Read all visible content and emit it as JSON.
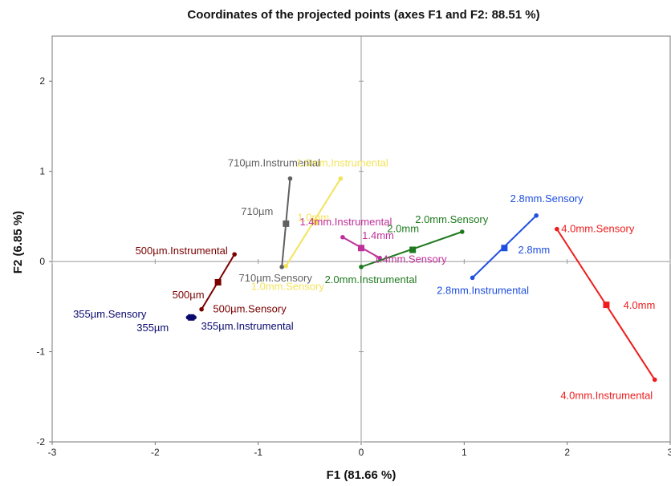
{
  "chart_data": {
    "type": "scatter",
    "title": "Coordinates of the projected points (axes F1 and F2: 88.51 %)",
    "xlabel": "F1 (81.66 %)",
    "ylabel": "F2 (6.85 %)",
    "xlim": [
      -3,
      3
    ],
    "ylim": [
      -2,
      2.5
    ],
    "xticks": [
      -3,
      -2,
      -1,
      0,
      1,
      2,
      3
    ],
    "yticks": [
      -2,
      -1,
      0,
      1,
      2
    ],
    "grid": false,
    "groups": [
      {
        "color": "#0a0a6e",
        "points": [
          {
            "name": "355µm.Sensory",
            "x": -1.68,
            "y": -0.62,
            "role": "endpoint"
          },
          {
            "name": "355µm",
            "x": -1.65,
            "y": -0.62,
            "role": "center"
          },
          {
            "name": "355µm.Instrumental",
            "x": -1.62,
            "y": -0.62,
            "role": "endpoint"
          }
        ]
      },
      {
        "color": "#7a0000",
        "points": [
          {
            "name": "500µm.Instrumental",
            "x": -1.23,
            "y": 0.08,
            "role": "endpoint"
          },
          {
            "name": "500µm",
            "x": -1.39,
            "y": -0.23,
            "role": "center"
          },
          {
            "name": "500µm.Sensory",
            "x": -1.55,
            "y": -0.53,
            "role": "endpoint"
          }
        ]
      },
      {
        "color": "#606060",
        "points": [
          {
            "name": "710µm.Instrumental",
            "x": -0.69,
            "y": 0.92,
            "role": "endpoint"
          },
          {
            "name": "710µm",
            "x": -0.73,
            "y": 0.42,
            "role": "center"
          },
          {
            "name": "710µm.Sensory",
            "x": -0.77,
            "y": -0.06,
            "role": "endpoint"
          }
        ]
      },
      {
        "color": "#f3e35c",
        "points": [
          {
            "name": "1.0mm.Instrumental",
            "x": -0.2,
            "y": 0.92,
            "role": "endpoint"
          },
          {
            "name": "1.0mm",
            "x": -0.45,
            "y": 0.44,
            "role": "center"
          },
          {
            "name": "1.0mm.Sensory",
            "x": -0.73,
            "y": -0.05,
            "role": "endpoint"
          }
        ]
      },
      {
        "color": "#c0309a",
        "points": [
          {
            "name": "1.4mm.Instrumental",
            "x": -0.18,
            "y": 0.27,
            "role": "endpoint"
          },
          {
            "name": "1.4mm",
            "x": 0.0,
            "y": 0.15,
            "role": "center"
          },
          {
            "name": "1.4mm.Sensory",
            "x": 0.18,
            "y": 0.04,
            "role": "endpoint"
          }
        ]
      },
      {
        "color": "#1e7a1e",
        "points": [
          {
            "name": "2.0mm.Sensory",
            "x": 0.98,
            "y": 0.33,
            "role": "endpoint"
          },
          {
            "name": "2.0mm",
            "x": 0.5,
            "y": 0.13,
            "role": "center"
          },
          {
            "name": "2.0mm.Instrumental",
            "x": 0.0,
            "y": -0.06,
            "role": "endpoint"
          }
        ]
      },
      {
        "color": "#1f4fe0",
        "points": [
          {
            "name": "2.8mm.Sensory",
            "x": 1.7,
            "y": 0.51,
            "role": "endpoint"
          },
          {
            "name": "2.8mm",
            "x": 1.39,
            "y": 0.15,
            "role": "center"
          },
          {
            "name": "2.8mm.Instrumental",
            "x": 1.08,
            "y": -0.18,
            "role": "endpoint"
          }
        ]
      },
      {
        "color": "#ee1c1c",
        "points": [
          {
            "name": "4.0mm.Sensory",
            "x": 1.9,
            "y": 0.36,
            "role": "endpoint"
          },
          {
            "name": "4.0mm",
            "x": 2.38,
            "y": -0.48,
            "role": "center"
          },
          {
            "name": "4.0mm.Instrumental",
            "x": 2.85,
            "y": -1.31,
            "role": "endpoint"
          }
        ]
      }
    ]
  }
}
